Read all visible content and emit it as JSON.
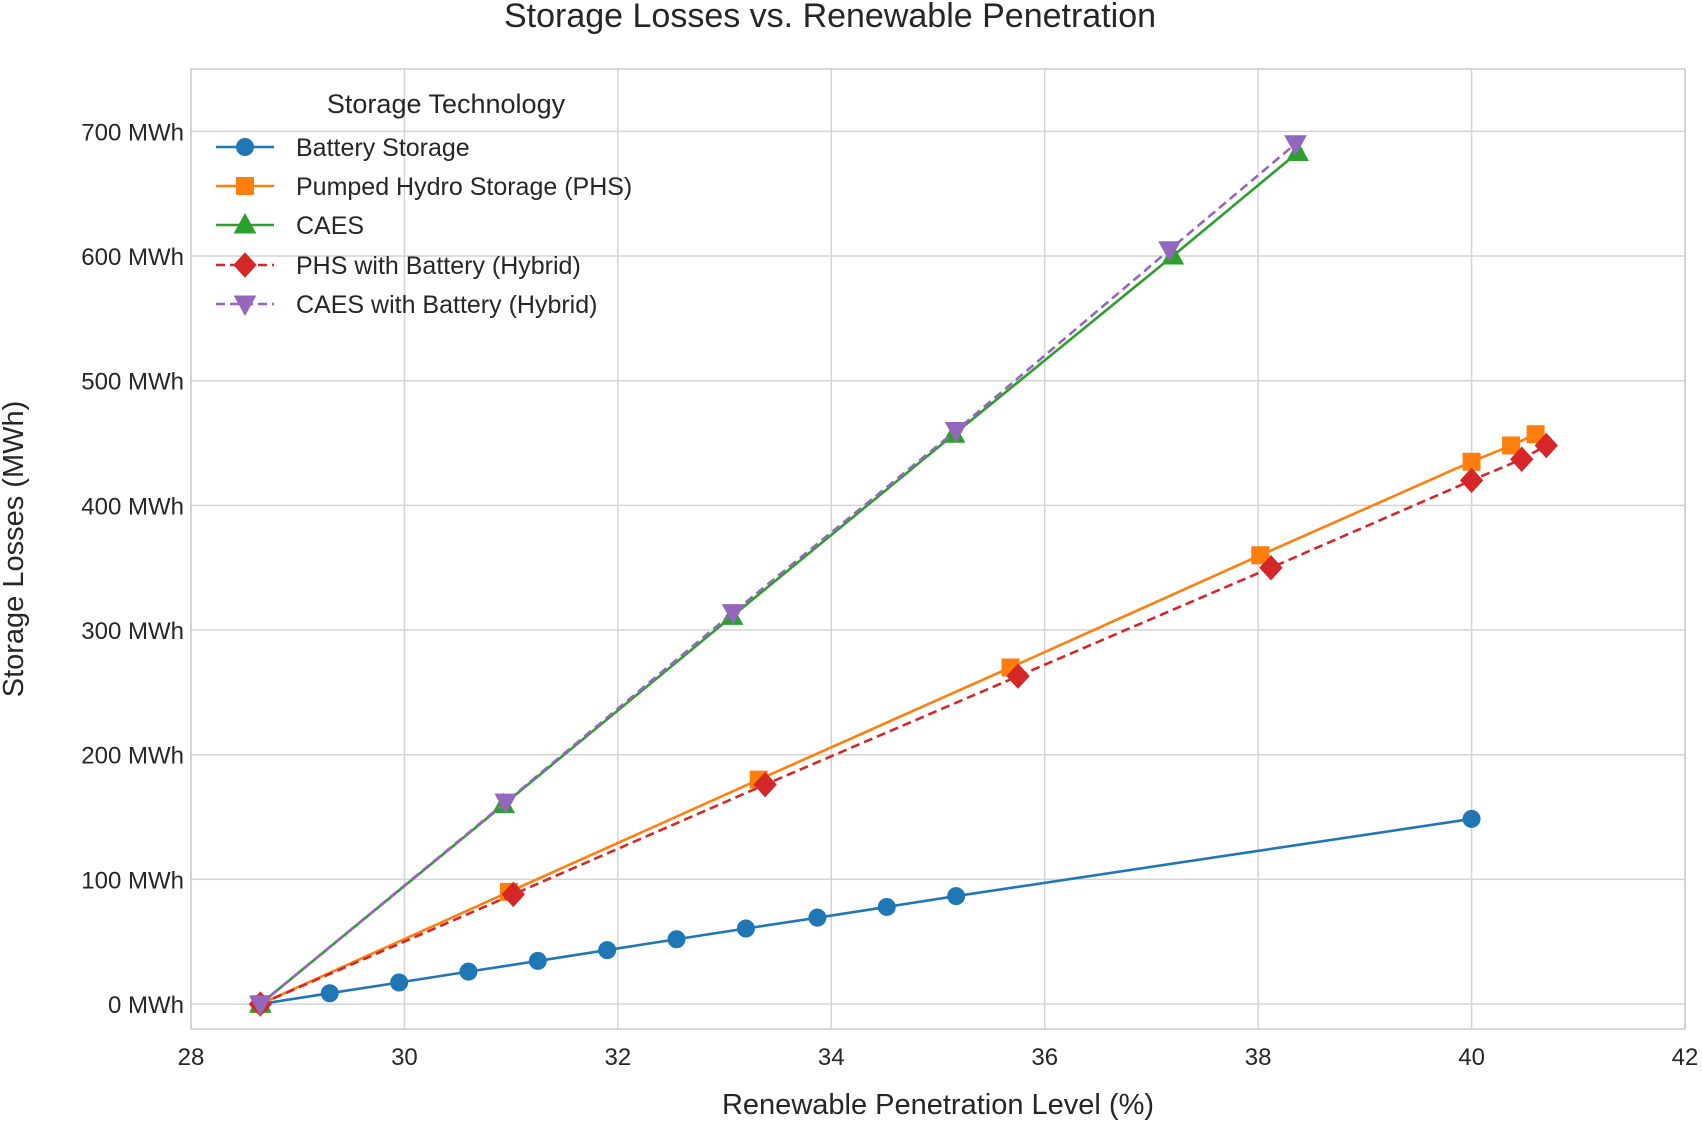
{
  "chart_data": {
    "type": "line",
    "title": "Storage Losses vs. Renewable Penetration",
    "xlabel": "Renewable Penetration Level (%)",
    "ylabel": "Storage Losses (MWh)",
    "xlim": [
      28,
      42
    ],
    "ylim": [
      -20,
      750
    ],
    "xticks": [
      28,
      30,
      32,
      34,
      36,
      38,
      40,
      42
    ],
    "yticks": [
      0,
      100,
      200,
      300,
      400,
      500,
      600,
      700
    ],
    "ytick_labels": [
      "0 MWh",
      "100 MWh",
      "200 MWh",
      "300 MWh",
      "400 MWh",
      "500 MWh",
      "600 MWh",
      "700 MWh"
    ],
    "grid": true,
    "legend": {
      "title": "Storage Technology",
      "position": "top-left"
    },
    "series": [
      {
        "name": "Battery Storage",
        "color": "#1f77b4",
        "marker": "circle",
        "linestyle": "solid",
        "x": [
          28.65,
          29.3,
          29.95,
          30.6,
          31.25,
          31.9,
          32.55,
          33.2,
          33.87,
          34.52,
          35.17,
          40.0
        ],
        "y": [
          0,
          8.7,
          17.3,
          26,
          34.6,
          43.3,
          52,
          60.6,
          69.3,
          77.9,
          86.6,
          148.5
        ]
      },
      {
        "name": "Pumped Hydro Storage (PHS)",
        "color": "#ff7f0e",
        "marker": "square",
        "linestyle": "solid",
        "x": [
          28.65,
          30.98,
          33.32,
          35.68,
          38.02,
          40.0,
          40.37,
          40.6
        ],
        "y": [
          0,
          90,
          180,
          270,
          360,
          435,
          448,
          457
        ]
      },
      {
        "name": "CAES",
        "color": "#2ca02c",
        "marker": "triangle-up",
        "linestyle": "solid",
        "x": [
          28.65,
          30.93,
          33.07,
          35.15,
          37.2,
          38.37
        ],
        "y": [
          0,
          160,
          311,
          457,
          600,
          683
        ]
      },
      {
        "name": "PHS with Battery (Hybrid)",
        "color": "#d62728",
        "marker": "diamond",
        "linestyle": "dashed",
        "x": [
          28.65,
          31.02,
          33.38,
          35.75,
          38.12,
          40.0,
          40.47,
          40.7
        ],
        "y": [
          0,
          88,
          176,
          263,
          350,
          420,
          437,
          448
        ]
      },
      {
        "name": "CAES with Battery (Hybrid)",
        "color": "#9467bd",
        "marker": "triangle-down",
        "linestyle": "dashed",
        "x": [
          28.65,
          30.95,
          33.08,
          35.17,
          37.17,
          38.35
        ],
        "y": [
          0,
          162,
          314,
          460,
          605,
          690
        ]
      }
    ]
  }
}
